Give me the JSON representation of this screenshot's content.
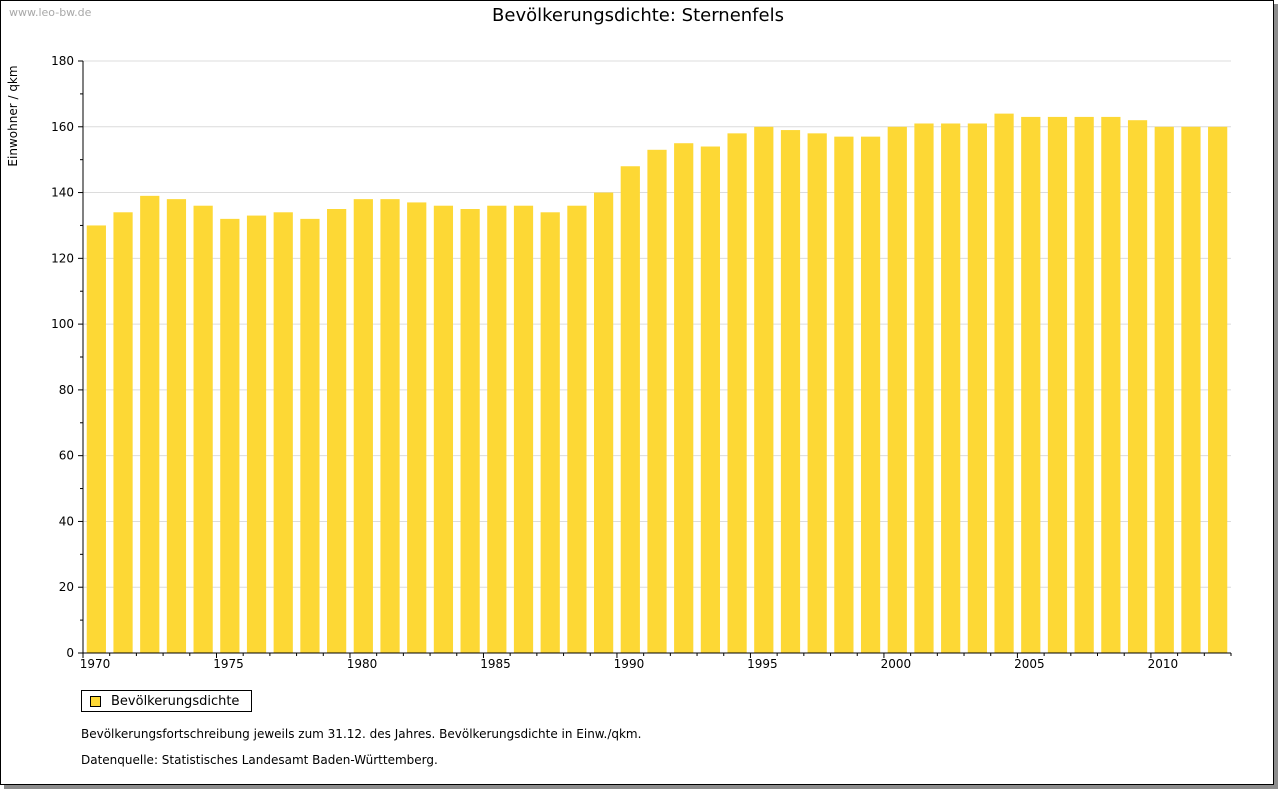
{
  "watermark": "www.leo-bw.de",
  "legend": {
    "label": "Bevölkerungsdichte"
  },
  "notes": {
    "line1": "Bevölkerungsfortschreibung jeweils zum 31.12. des Jahres. Bevölkerungsdichte in Einw./qkm.",
    "line2": "Datenquelle: Statistisches Landesamt Baden-Württemberg."
  },
  "colors": {
    "bar": "#FDD835",
    "grid": "#dcdcdc",
    "axis": "#000000"
  },
  "chart_data": {
    "type": "bar",
    "title": "Bevölkerungsdichte: Sternenfels",
    "ylabel": "Einwohner / qkm",
    "xlabel": "",
    "ylim": [
      0,
      180
    ],
    "yticks": [
      0,
      20,
      40,
      60,
      80,
      100,
      120,
      140,
      160,
      180
    ],
    "xticks": [
      1970,
      1975,
      1980,
      1985,
      1990,
      1995,
      2000,
      2005,
      2010
    ],
    "grid": true,
    "legend_position": "bottom-left",
    "categories": [
      1970,
      1971,
      1972,
      1973,
      1974,
      1975,
      1976,
      1977,
      1978,
      1979,
      1980,
      1981,
      1982,
      1983,
      1984,
      1985,
      1986,
      1987,
      1988,
      1989,
      1990,
      1991,
      1992,
      1993,
      1994,
      1995,
      1996,
      1997,
      1998,
      1999,
      2000,
      2001,
      2002,
      2003,
      2004,
      2005,
      2006,
      2007,
      2008,
      2009,
      2010,
      2011,
      2012
    ],
    "series": [
      {
        "name": "Bevölkerungsdichte",
        "values": [
          130,
          134,
          139,
          138,
          136,
          132,
          133,
          134,
          132,
          135,
          138,
          138,
          137,
          136,
          135,
          136,
          136,
          134,
          136,
          140,
          148,
          153,
          155,
          154,
          158,
          160,
          159,
          158,
          157,
          157,
          160,
          161,
          161,
          161,
          164,
          163,
          163,
          163,
          163,
          162,
          160,
          160,
          160
        ]
      }
    ]
  }
}
